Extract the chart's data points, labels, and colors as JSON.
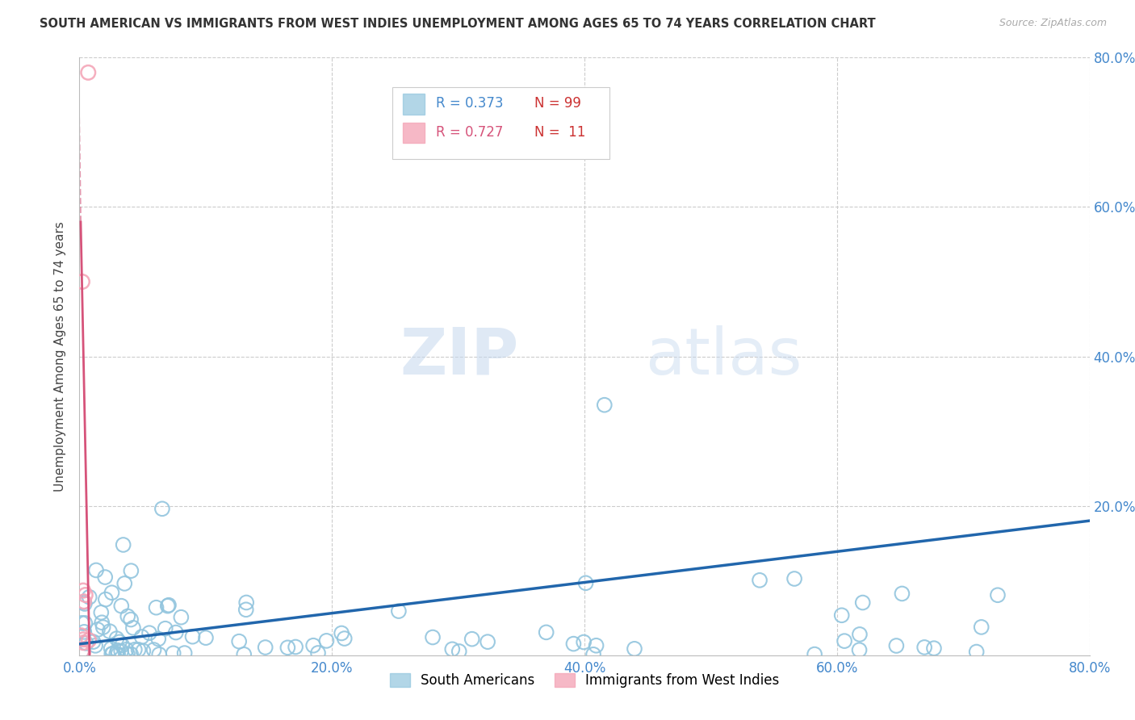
{
  "title": "SOUTH AMERICAN VS IMMIGRANTS FROM WEST INDIES UNEMPLOYMENT AMONG AGES 65 TO 74 YEARS CORRELATION CHART",
  "source": "Source: ZipAtlas.com",
  "ylabel": "Unemployment Among Ages 65 to 74 years",
  "xlim": [
    0.0,
    0.8
  ],
  "ylim": [
    0.0,
    0.8
  ],
  "xticks": [
    0.0,
    0.2,
    0.4,
    0.6,
    0.8
  ],
  "yticks": [
    0.2,
    0.4,
    0.6,
    0.8
  ],
  "xticklabels": [
    "0.0%",
    "20.0%",
    "40.0%",
    "60.0%",
    "80.0%"
  ],
  "yticklabels_right": [
    "20.0%",
    "40.0%",
    "60.0%",
    "80.0%"
  ],
  "blue_color": "#92c5de",
  "pink_color": "#f4a6b8",
  "blue_line_color": "#2166ac",
  "pink_line_color": "#d6537a",
  "grid_color": "#cccccc",
  "watermark_zip": "ZIP",
  "watermark_atlas": "atlas",
  "legend_R_blue": "R = 0.373",
  "legend_N_blue": "N = 99",
  "legend_R_pink": "R = 0.727",
  "legend_N_pink": "N =  11",
  "title_color": "#333333",
  "source_color": "#aaaaaa",
  "tick_color": "#4488cc",
  "ylabel_color": "#444444"
}
